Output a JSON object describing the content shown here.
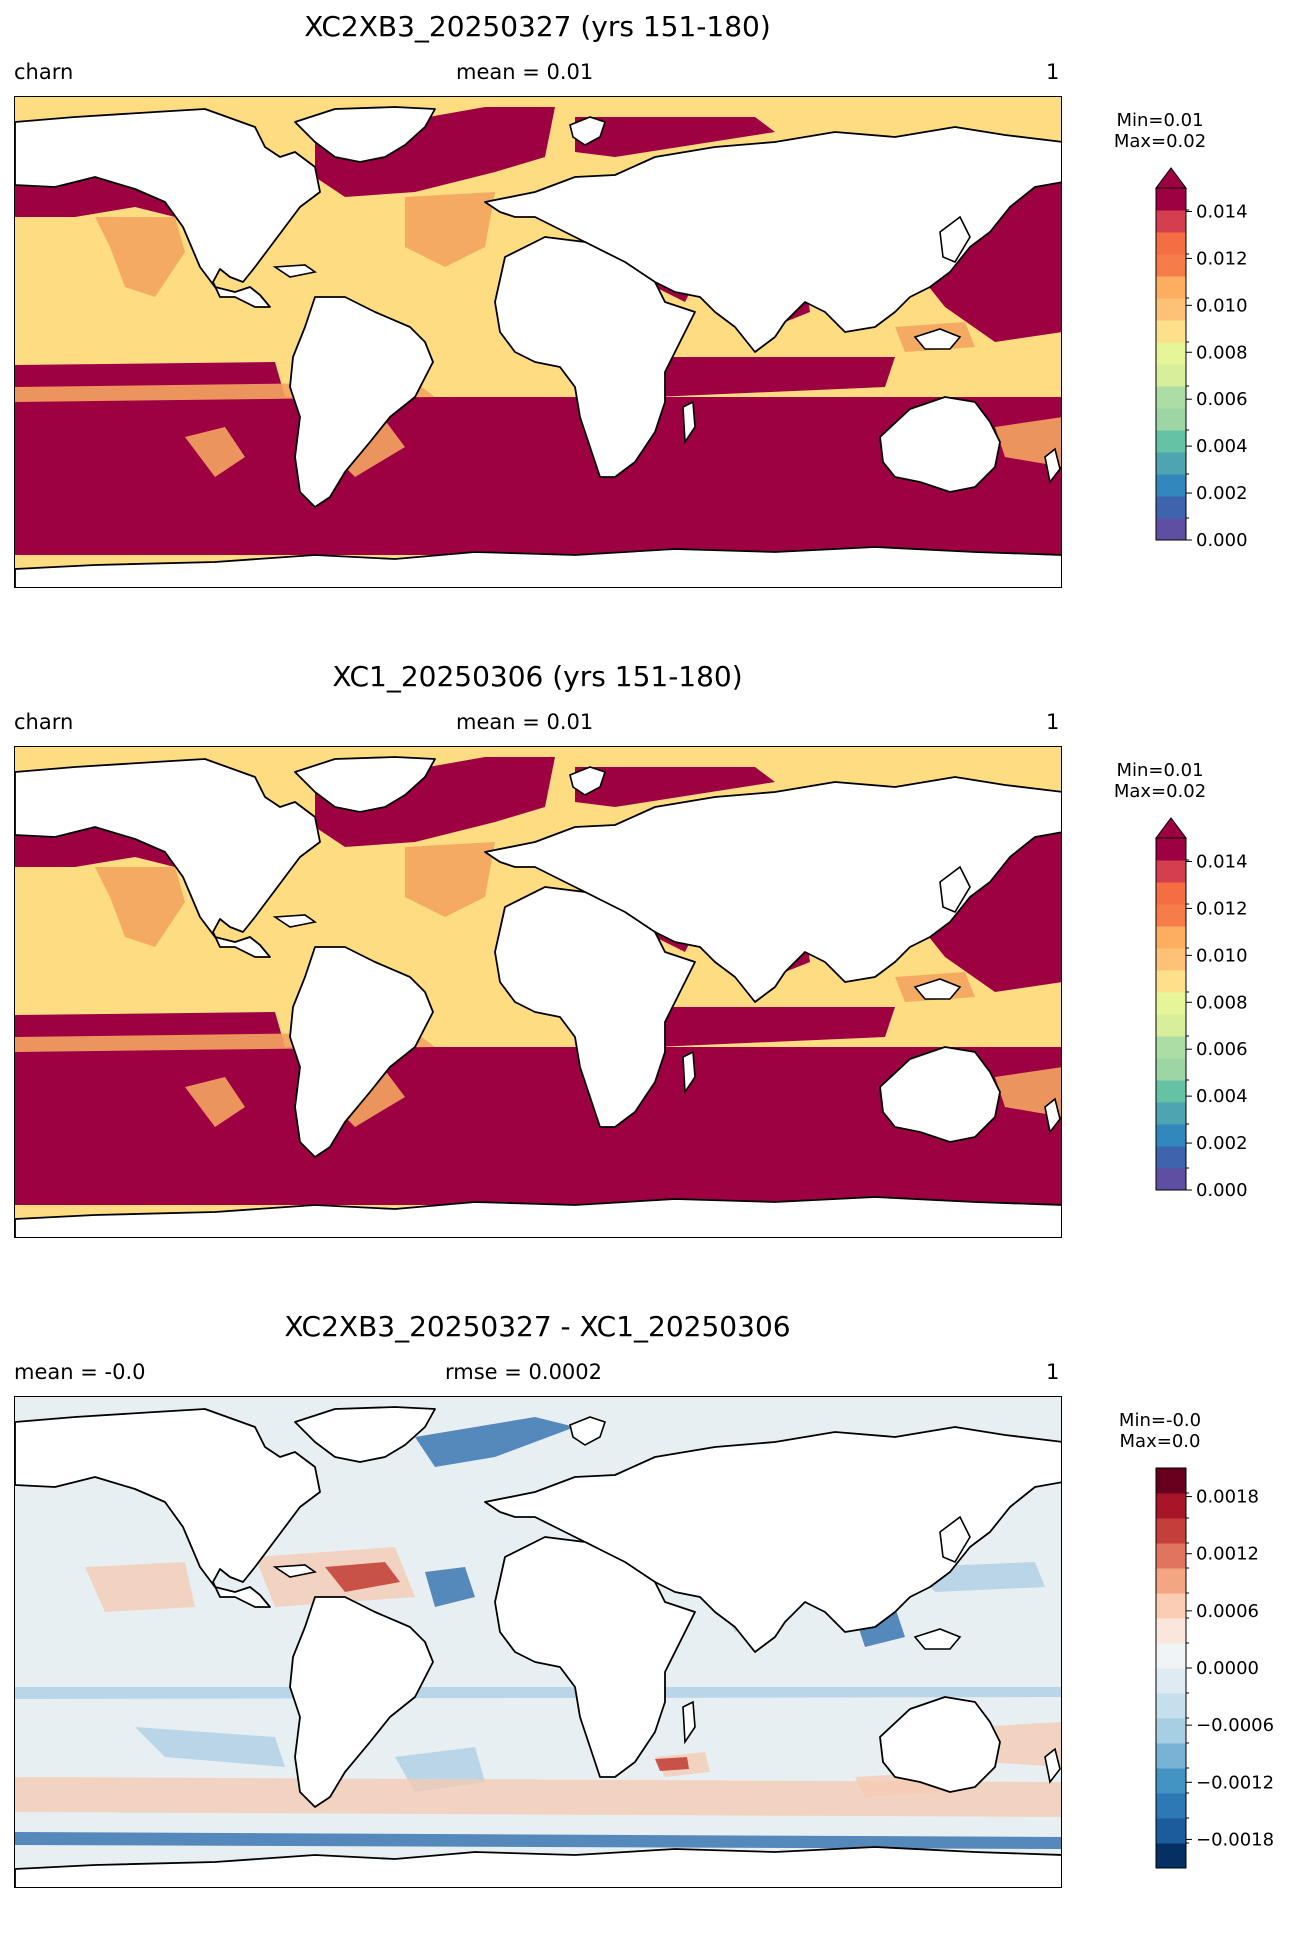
{
  "panels": [
    {
      "title": "XC2XB3_20250327 (yrs 151-180)",
      "left_label": "charn",
      "center_label": "mean = 0.01",
      "right_label": "1",
      "min_text": "Min=0.01",
      "max_text": "Max=0.02"
    },
    {
      "title": "XC1_20250306 (yrs 151-180)",
      "left_label": "charn",
      "center_label": "mean = 0.01",
      "right_label": "1",
      "min_text": "Min=0.01",
      "max_text": "Max=0.02"
    },
    {
      "title": "XC2XB3_20250327 - XC1_20250306",
      "left_label": "mean = -0.0",
      "center_label": "rmse = 0.0002",
      "right_label": "1",
      "min_text": "Min=-0.0",
      "max_text": "Max=0.0"
    }
  ],
  "colors": {
    "land": "#ffffff",
    "coast": "#000000",
    "high": "#9e0142",
    "mid": "#f4a460",
    "low": "#fddc82",
    "diff_neutral": "#e8eff3",
    "diff_pos": "#f6c9b0",
    "diff_pos_strong": "#c23b32",
    "diff_neg": "#a9cce3",
    "diff_neg_strong": "#2f6fae"
  },
  "chart_data": [
    {
      "type": "heatmap",
      "title": "XC2XB3_20250327 (yrs 151-180)",
      "variable": "charn",
      "mean": 0.01,
      "units": "1",
      "min": 0.01,
      "max": 0.02,
      "colorbar": {
        "range": [
          0.0,
          0.015
        ],
        "extend": "max",
        "ticks": [
          "0.000",
          "0.002",
          "0.004",
          "0.006",
          "0.008",
          "0.010",
          "0.012",
          "0.014"
        ],
        "colors": [
          "#5e4fa2",
          "#3d64ad",
          "#3288bd",
          "#4fa4b1",
          "#66c2a5",
          "#9dd6a4",
          "#abdda4",
          "#d7ef9a",
          "#e6f598",
          "#fee08b",
          "#fdc275",
          "#fdae61",
          "#f67d4a",
          "#f46d43",
          "#d53e4f",
          "#9e0142"
        ]
      }
    },
    {
      "type": "heatmap",
      "title": "XC1_20250306 (yrs 151-180)",
      "variable": "charn",
      "mean": 0.01,
      "units": "1",
      "min": 0.01,
      "max": 0.02,
      "colorbar": {
        "range": [
          0.0,
          0.015
        ],
        "extend": "max",
        "ticks": [
          "0.000",
          "0.002",
          "0.004",
          "0.006",
          "0.008",
          "0.010",
          "0.012",
          "0.014"
        ],
        "colors": [
          "#5e4fa2",
          "#3d64ad",
          "#3288bd",
          "#4fa4b1",
          "#66c2a5",
          "#9dd6a4",
          "#abdda4",
          "#d7ef9a",
          "#e6f598",
          "#fee08b",
          "#fdc275",
          "#fdae61",
          "#f67d4a",
          "#f46d43",
          "#d53e4f",
          "#9e0142"
        ]
      }
    },
    {
      "type": "heatmap",
      "title": "XC2XB3_20250327 - XC1_20250306",
      "mean": -0.0,
      "rmse": 0.0002,
      "units": "1",
      "min": -0.0,
      "max": 0.0,
      "colorbar": {
        "range": [
          -0.0021,
          0.0021
        ],
        "extend": "neither",
        "ticks": [
          "0.0018",
          "0.0012",
          "0.0006",
          "0.0000",
          "−0.0006",
          "−0.0012",
          "−0.0018"
        ],
        "tick_values": [
          0.0018,
          0.0012,
          0.0006,
          0.0,
          -0.0006,
          -0.0012,
          -0.0018
        ],
        "colors": [
          "#053061",
          "#1c5c9c",
          "#2f78b6",
          "#4393c3",
          "#78b2d4",
          "#a7cfe4",
          "#c5dfec",
          "#deebf2",
          "#f0f4f6",
          "#fbe6db",
          "#fbcdb4",
          "#f4a582",
          "#e0745e",
          "#c43e3b",
          "#a81529",
          "#67001f"
        ]
      }
    }
  ]
}
